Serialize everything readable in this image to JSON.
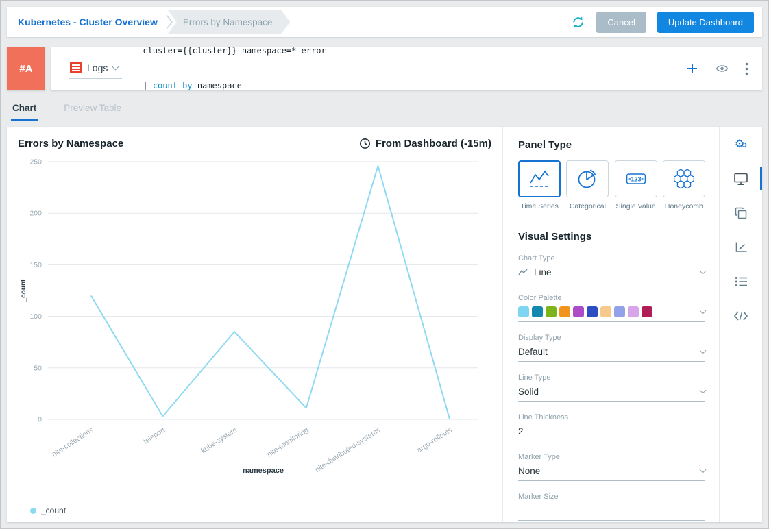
{
  "colors": {
    "accent_blue": "#1673d2",
    "line_blue": "#8fd9f2",
    "badge_orange": "#f0705a",
    "refresh_teal": "#14b0c6",
    "cancel_gray": "#a9bcc7",
    "update_blue": "#1287e2",
    "logs_red": "#e8402a"
  },
  "header": {
    "breadcrumb": [
      "Kubernetes - Cluster Overview",
      "Errors by Namespace"
    ],
    "cancel_label": "Cancel",
    "update_label": "Update Dashboard"
  },
  "query_row": {
    "row_id": "#A",
    "source_label": "Logs",
    "query_line1": "cluster={{cluster}} namespace=* error",
    "query_line2_pipe": "| ",
    "query_line2_keyword": "count by",
    "query_line2_rest": " namespace"
  },
  "tabs": [
    {
      "label": "Chart"
    },
    {
      "label": "Preview Table"
    }
  ],
  "chart_panel": {
    "title": "Errors by Namespace",
    "time_label": "From Dashboard (-15m)"
  },
  "chart_data": {
    "type": "line",
    "title": "Errors by Namespace",
    "categories": [
      "nite-collections",
      "teleport",
      "kube-system",
      "nite-monitoring",
      "nite-distributed-systems",
      "argo-rollouts"
    ],
    "series": [
      {
        "name": "_count",
        "color": "#8fd9f2",
        "values": [
          120,
          3,
          85,
          11,
          246,
          0
        ]
      }
    ],
    "xlabel": "namespace",
    "ylabel": "_count",
    "ylim": [
      0,
      250
    ],
    "yticks": [
      0,
      50,
      100,
      150,
      200,
      250
    ],
    "grid": true,
    "legend_position": "bottom-left"
  },
  "settings": {
    "panel_type_title": "Panel Type",
    "panel_types": [
      {
        "label": "Time Series",
        "selected": true
      },
      {
        "label": "Categorical",
        "selected": false
      },
      {
        "label": "Single Value",
        "selected": false
      },
      {
        "label": "Honeycomb",
        "selected": false
      }
    ],
    "icons": {
      "single_value_text": "123"
    },
    "visual_settings_title": "Visual Settings",
    "chart_type": {
      "label": "Chart Type",
      "value": "Line"
    },
    "color_palette": {
      "label": "Color Palette",
      "colors": [
        "#7fd6f2",
        "#1488ae",
        "#7fb31b",
        "#f0941f",
        "#ae4bc8",
        "#2d4ec0",
        "#f6c98d",
        "#93a0ea",
        "#d7a5e8",
        "#b01d57"
      ]
    },
    "display_type": {
      "label": "Display Type",
      "value": "Default"
    },
    "line_type": {
      "label": "Line Type",
      "value": "Solid"
    },
    "line_thickness": {
      "label": "Line Thickness",
      "value": "2"
    },
    "marker_type": {
      "label": "Marker Type",
      "value": "None"
    },
    "marker_size": {
      "label": "Marker Size"
    }
  },
  "side_toolbar": {
    "icons": [
      "settings-gears-icon",
      "display-icon",
      "duplicate-icon",
      "chart-axes-icon",
      "list-icon",
      "code-icon"
    ]
  }
}
